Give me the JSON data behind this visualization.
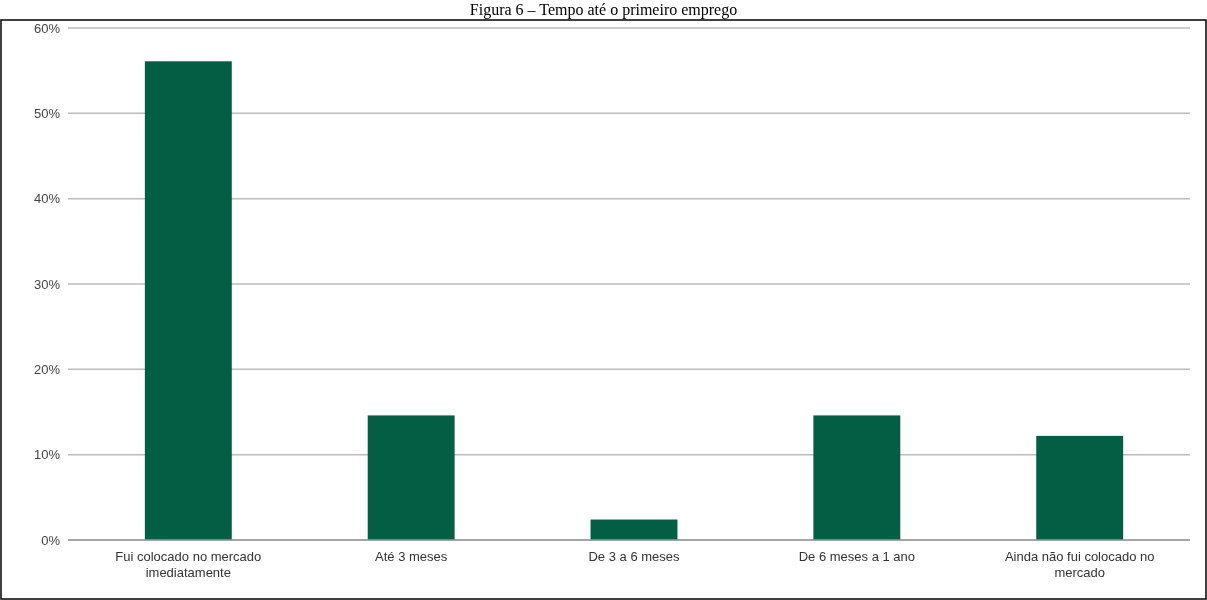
{
  "chart_data": {
    "type": "bar",
    "title": "Figura 6 – Tempo até o primeiro emprego",
    "categories": [
      "Fui colocado no mercado imediatamente",
      "Até 3 meses",
      "De 3 a 6 meses",
      "De 6 meses a 1 ano",
      "Ainda não fui colocado no mercado"
    ],
    "values": [
      56.1,
      14.6,
      2.4,
      14.6,
      12.2
    ],
    "color": "#035e44",
    "ylim": [
      0,
      60
    ],
    "yticks": [
      {
        "value": 0,
        "label": "0%"
      },
      {
        "value": 10,
        "label": "10%"
      },
      {
        "value": 20,
        "label": "20%"
      },
      {
        "value": 30,
        "label": "30%"
      },
      {
        "value": 40,
        "label": "40%"
      },
      {
        "value": 50,
        "label": "50%"
      },
      {
        "value": 60,
        "label": "60%"
      }
    ],
    "grid": true
  }
}
